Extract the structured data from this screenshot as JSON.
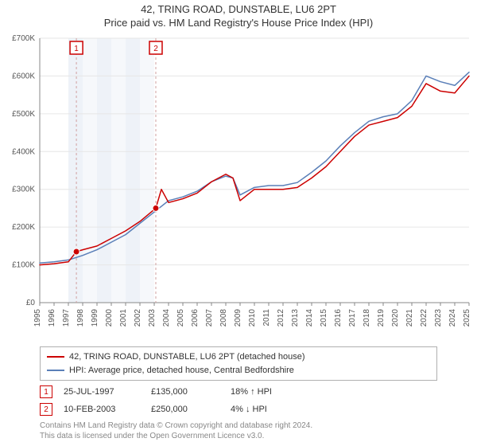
{
  "title_line1": "42, TRING ROAD, DUNSTABLE, LU6 2PT",
  "title_line2": "Price paid vs. HM Land Registry's House Price Index (HPI)",
  "chart": {
    "type": "line",
    "background_color": "#ffffff",
    "plot_border_color": "#cccccc",
    "grid_color": "#e6e6e6",
    "highlight_band_color": "#eef2f8",
    "vline_color": "#d0a0a0",
    "tick_fontsize": 10,
    "tick_color": "#555555",
    "y_prefix": "£",
    "ylim": [
      0,
      700000
    ],
    "ytick_step": 100000,
    "ytick_labels": [
      "£0",
      "£100K",
      "£200K",
      "£300K",
      "£400K",
      "£500K",
      "£600K",
      "£700K"
    ],
    "xlim": [
      1995,
      2025
    ],
    "xticks": [
      1995,
      1996,
      1997,
      1998,
      1999,
      2000,
      2001,
      2002,
      2003,
      2004,
      2005,
      2006,
      2007,
      2008,
      2009,
      2010,
      2011,
      2012,
      2013,
      2014,
      2015,
      2016,
      2017,
      2018,
      2019,
      2020,
      2021,
      2022,
      2023,
      2024,
      2025
    ],
    "series": [
      {
        "name": "42, TRING ROAD, DUNSTABLE, LU6 2PT (detached house)",
        "color": "#cc0000",
        "line_width": 1.5,
        "xy": [
          [
            1995,
            100000
          ],
          [
            1996,
            103000
          ],
          [
            1997,
            108000
          ],
          [
            1997.56,
            135000
          ],
          [
            1998,
            140000
          ],
          [
            1999,
            150000
          ],
          [
            2000,
            170000
          ],
          [
            2001,
            190000
          ],
          [
            2002,
            215000
          ],
          [
            2003.11,
            250000
          ],
          [
            2003.5,
            300000
          ],
          [
            2004,
            265000
          ],
          [
            2005,
            275000
          ],
          [
            2006,
            290000
          ],
          [
            2007,
            320000
          ],
          [
            2008,
            340000
          ],
          [
            2008.5,
            330000
          ],
          [
            2009,
            270000
          ],
          [
            2010,
            300000
          ],
          [
            2011,
            300000
          ],
          [
            2012,
            300000
          ],
          [
            2013,
            305000
          ],
          [
            2014,
            330000
          ],
          [
            2015,
            360000
          ],
          [
            2016,
            400000
          ],
          [
            2017,
            440000
          ],
          [
            2018,
            470000
          ],
          [
            2019,
            480000
          ],
          [
            2020,
            490000
          ],
          [
            2021,
            520000
          ],
          [
            2022,
            580000
          ],
          [
            2023,
            560000
          ],
          [
            2024,
            555000
          ],
          [
            2025,
            600000
          ]
        ]
      },
      {
        "name": "HPI: Average price, detached house, Central Bedfordshire",
        "color": "#5a7fb8",
        "line_width": 1.5,
        "xy": [
          [
            1995,
            105000
          ],
          [
            1996,
            108000
          ],
          [
            1997,
            113000
          ],
          [
            1998,
            125000
          ],
          [
            1999,
            140000
          ],
          [
            2000,
            160000
          ],
          [
            2001,
            180000
          ],
          [
            2002,
            210000
          ],
          [
            2003,
            240000
          ],
          [
            2004,
            270000
          ],
          [
            2005,
            280000
          ],
          [
            2006,
            295000
          ],
          [
            2007,
            320000
          ],
          [
            2008,
            335000
          ],
          [
            2008.5,
            330000
          ],
          [
            2009,
            285000
          ],
          [
            2010,
            305000
          ],
          [
            2011,
            310000
          ],
          [
            2012,
            310000
          ],
          [
            2013,
            318000
          ],
          [
            2014,
            345000
          ],
          [
            2015,
            375000
          ],
          [
            2016,
            415000
          ],
          [
            2017,
            450000
          ],
          [
            2018,
            480000
          ],
          [
            2019,
            492000
          ],
          [
            2020,
            500000
          ],
          [
            2021,
            535000
          ],
          [
            2022,
            600000
          ],
          [
            2023,
            585000
          ],
          [
            2024,
            575000
          ],
          [
            2025,
            610000
          ]
        ]
      }
    ],
    "markers": [
      {
        "label": "1",
        "x": 1997.56,
        "y": 135000
      },
      {
        "label": "2",
        "x": 2003.11,
        "y": 250000
      }
    ],
    "highlight_band": [
      1997,
      2003
    ]
  },
  "legend": {
    "series1": "42, TRING ROAD, DUNSTABLE, LU6 2PT (detached house)",
    "series2": "HPI: Average price, detached house, Central Bedfordshire"
  },
  "sales": [
    {
      "marker": "1",
      "date": "25-JUL-1997",
      "price": "£135,000",
      "delta": "18% ↑ HPI"
    },
    {
      "marker": "2",
      "date": "10-FEB-2003",
      "price": "£250,000",
      "delta": "4% ↓ HPI"
    }
  ],
  "attribution": {
    "line1": "Contains HM Land Registry data © Crown copyright and database right 2024.",
    "line2": "This data is licensed under the Open Government Licence v3.0."
  }
}
